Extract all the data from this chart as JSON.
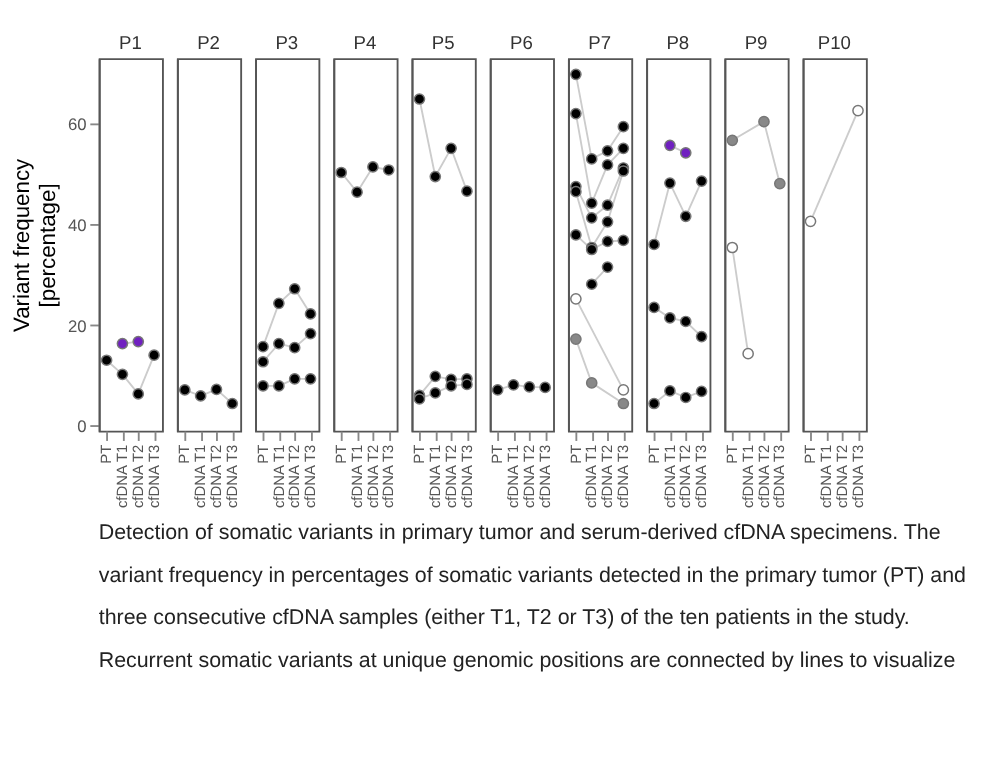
{
  "chart_data": [
    {
      "type": "line",
      "title": "P1",
      "ylabel": "Variant frequency\n[percentage]",
      "categories": [
        "PT",
        "cfDNA T1",
        "cfDNA T2",
        "cfDNA T3"
      ],
      "ylim": [
        -1,
        73
      ],
      "yticks": [
        0,
        20,
        40,
        60
      ],
      "marker": "circle",
      "grid": false,
      "series": [
        {
          "color": "#000000",
          "values": [
            13.0,
            10.2,
            6.3,
            14.0
          ]
        },
        {
          "color": "#7020c0",
          "values": [
            null,
            16.3,
            16.7,
            null
          ]
        }
      ],
      "annotations": [
        "Detection of somatic variants in primary tumor and serum-derived cfDNA specimens. The",
        "variant frequency in percentages of somatic variants detected in the primary tumor (PT) and",
        "three consecutive cfDNA samples (either T1, T2 or T3) of the ten patients in the study.",
        "Recurrent somatic variants at unique genomic positions are connected by lines to visualize"
      ]
    },
    {
      "type": "line",
      "title": "P2",
      "categories": [
        "PT",
        "cfDNA T1",
        "cfDNA T2",
        "cfDNA T3"
      ],
      "ylim": [
        -1,
        73
      ],
      "tick_labels": "x",
      "marker": "circle",
      "grid": false,
      "series": [
        {
          "color": "#000000",
          "values": [
            7.1,
            5.9,
            7.2,
            4.4
          ]
        }
      ]
    },
    {
      "type": "line",
      "title": "P3",
      "categories": [
        "PT",
        "cfDNA T1",
        "cfDNA T2",
        "cfDNA T3"
      ],
      "ylim": [
        -1,
        73
      ],
      "tick_labels": "x",
      "marker": "circle",
      "grid": false,
      "series": [
        {
          "color": "#000000",
          "values": [
            15.7,
            24.3,
            27.2,
            22.2
          ]
        },
        {
          "color": "#000000",
          "values": [
            12.7,
            16.3,
            15.5,
            18.3
          ]
        },
        {
          "color": "#000000",
          "values": [
            7.9,
            7.9,
            9.3,
            9.3
          ]
        }
      ]
    },
    {
      "type": "line",
      "title": "P4",
      "categories": [
        "PT",
        "cfDNA T1",
        "cfDNA T2",
        "cfDNA T3"
      ],
      "ylim": [
        -1,
        73
      ],
      "tick_labels": "x",
      "marker": "circle",
      "grid": false,
      "series": [
        {
          "color": "#000000",
          "values": [
            50.3,
            46.4,
            51.4,
            50.8
          ]
        }
      ]
    },
    {
      "type": "line",
      "title": "P5",
      "categories": [
        "PT",
        "cfDNA T1",
        "cfDNA T2",
        "cfDNA T3"
      ],
      "ylim": [
        -1,
        73
      ],
      "tick_labels": "x",
      "marker": "circle",
      "grid": false,
      "series": [
        {
          "color": "#000000",
          "values": [
            64.9,
            49.5,
            55.1,
            46.6
          ]
        },
        {
          "color": "#000000",
          "values": [
            6.0,
            9.8,
            9.2,
            9.3
          ]
        },
        {
          "color": "#000000",
          "values": [
            5.3,
            6.5,
            7.9,
            8.2
          ]
        }
      ]
    },
    {
      "type": "line",
      "title": "P6",
      "categories": [
        "PT",
        "cfDNA T1",
        "cfDNA T2",
        "cfDNA T3"
      ],
      "ylim": [
        -1,
        73
      ],
      "tick_labels": "x",
      "marker": "circle",
      "grid": false,
      "series": [
        {
          "color": "#000000",
          "values": [
            7.1,
            8.1,
            7.7,
            7.6
          ]
        }
      ]
    },
    {
      "type": "line",
      "title": "P7",
      "categories": [
        "PT",
        "cfDNA T1",
        "cfDNA T2",
        "cfDNA T3"
      ],
      "ylim": [
        -1,
        73
      ],
      "tick_labels": "x",
      "marker": "circle",
      "grid": false,
      "series": [
        {
          "color": "#000000",
          "values": [
            69.8,
            53.0,
            54.6,
            59.4
          ]
        },
        {
          "color": "#000000",
          "values": [
            62.0,
            44.2,
            51.8,
            55.1
          ]
        },
        {
          "color": "#000000",
          "values": [
            47.5,
            41.3,
            43.8,
            51.2
          ]
        },
        {
          "color": "#000000",
          "values": [
            46.5,
            35.4,
            40.5,
            50.6
          ]
        },
        {
          "color": "#000000",
          "values": [
            37.9,
            35.0,
            36.6,
            36.8
          ]
        },
        {
          "color": "#000000",
          "values": [
            null,
            28.1,
            31.5,
            null
          ]
        },
        {
          "color": "#ffffff",
          "values": [
            25.2,
            null,
            null,
            7.1
          ]
        },
        {
          "color": "#888888",
          "values": [
            17.2,
            8.5,
            null,
            4.4
          ]
        }
      ]
    },
    {
      "type": "line",
      "title": "P8",
      "categories": [
        "PT",
        "cfDNA T1",
        "cfDNA T2",
        "cfDNA T3"
      ],
      "ylim": [
        -1,
        73
      ],
      "tick_labels": "x",
      "marker": "circle",
      "grid": false,
      "series": [
        {
          "color": "#7020c0",
          "values": [
            null,
            55.7,
            54.2,
            null
          ]
        },
        {
          "color": "#000000",
          "values": [
            36.0,
            48.2,
            41.6,
            48.6
          ]
        },
        {
          "color": "#000000",
          "values": [
            23.5,
            21.4,
            20.7,
            17.7
          ]
        },
        {
          "color": "#000000",
          "values": [
            4.4,
            6.9,
            5.6,
            6.8
          ]
        }
      ]
    },
    {
      "type": "line",
      "title": "P9",
      "categories": [
        "PT",
        "cfDNA T1",
        "cfDNA T2",
        "cfDNA T3"
      ],
      "ylim": [
        -1,
        73
      ],
      "tick_labels": "x",
      "marker": "circle",
      "grid": false,
      "series": [
        {
          "color": "#888888",
          "values": [
            56.7,
            null,
            60.4,
            48.1
          ]
        },
        {
          "color": "#ffffff",
          "values": [
            35.4,
            14.3,
            null,
            null
          ]
        }
      ]
    },
    {
      "type": "line",
      "title": "P10",
      "categories": [
        "PT",
        "cfDNA T1",
        "cfDNA T2",
        "cfDNA T3"
      ],
      "ylim": [
        -1,
        73
      ],
      "tick_labels": "x",
      "marker": "circle",
      "grid": false,
      "series": [
        {
          "color": "#ffffff",
          "values": [
            40.6,
            null,
            null,
            62.6
          ]
        }
      ]
    }
  ]
}
